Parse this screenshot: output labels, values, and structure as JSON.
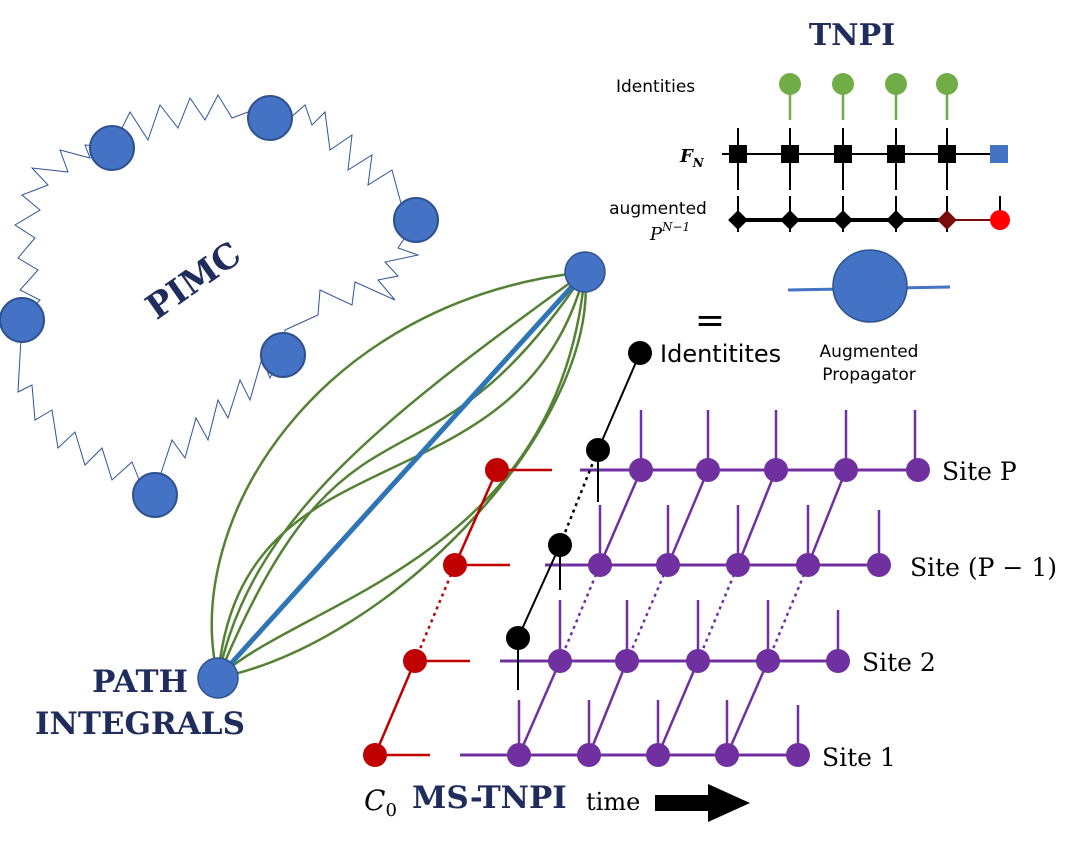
{
  "colors": {
    "navy_text": "#1f2d5c",
    "blue_node": "#4472c4",
    "blue_line": "#2e75b6",
    "green": "#548235",
    "light_green": "#70ad47",
    "purple": "#7030a0",
    "red": "#c00000",
    "dark_red": "#7b0c0c",
    "bright_red": "#ff0000",
    "black": "#000000"
  },
  "labels": {
    "pimc": "PIMC",
    "path": "PATH",
    "integrals": "INTEGRALS",
    "tnpi": "TNPI",
    "identities": "Identities",
    "f_n": "F",
    "f_n_sub": "N",
    "augmented": "augmented",
    "p": "P",
    "p_sup": "N−1",
    "equals": "=",
    "augmented_propagator_line1": "Augmented",
    "augmented_propagator_line2": "Propagator",
    "identitites": "Identitites",
    "site_p": "Site P",
    "site_p_minus_1": "Site (P − 1)",
    "site_2": "Site 2",
    "site_1": "Site 1",
    "c": "C",
    "c_sub": "0",
    "ms_tnpi": "MS-TNPI",
    "time": "time"
  }
}
